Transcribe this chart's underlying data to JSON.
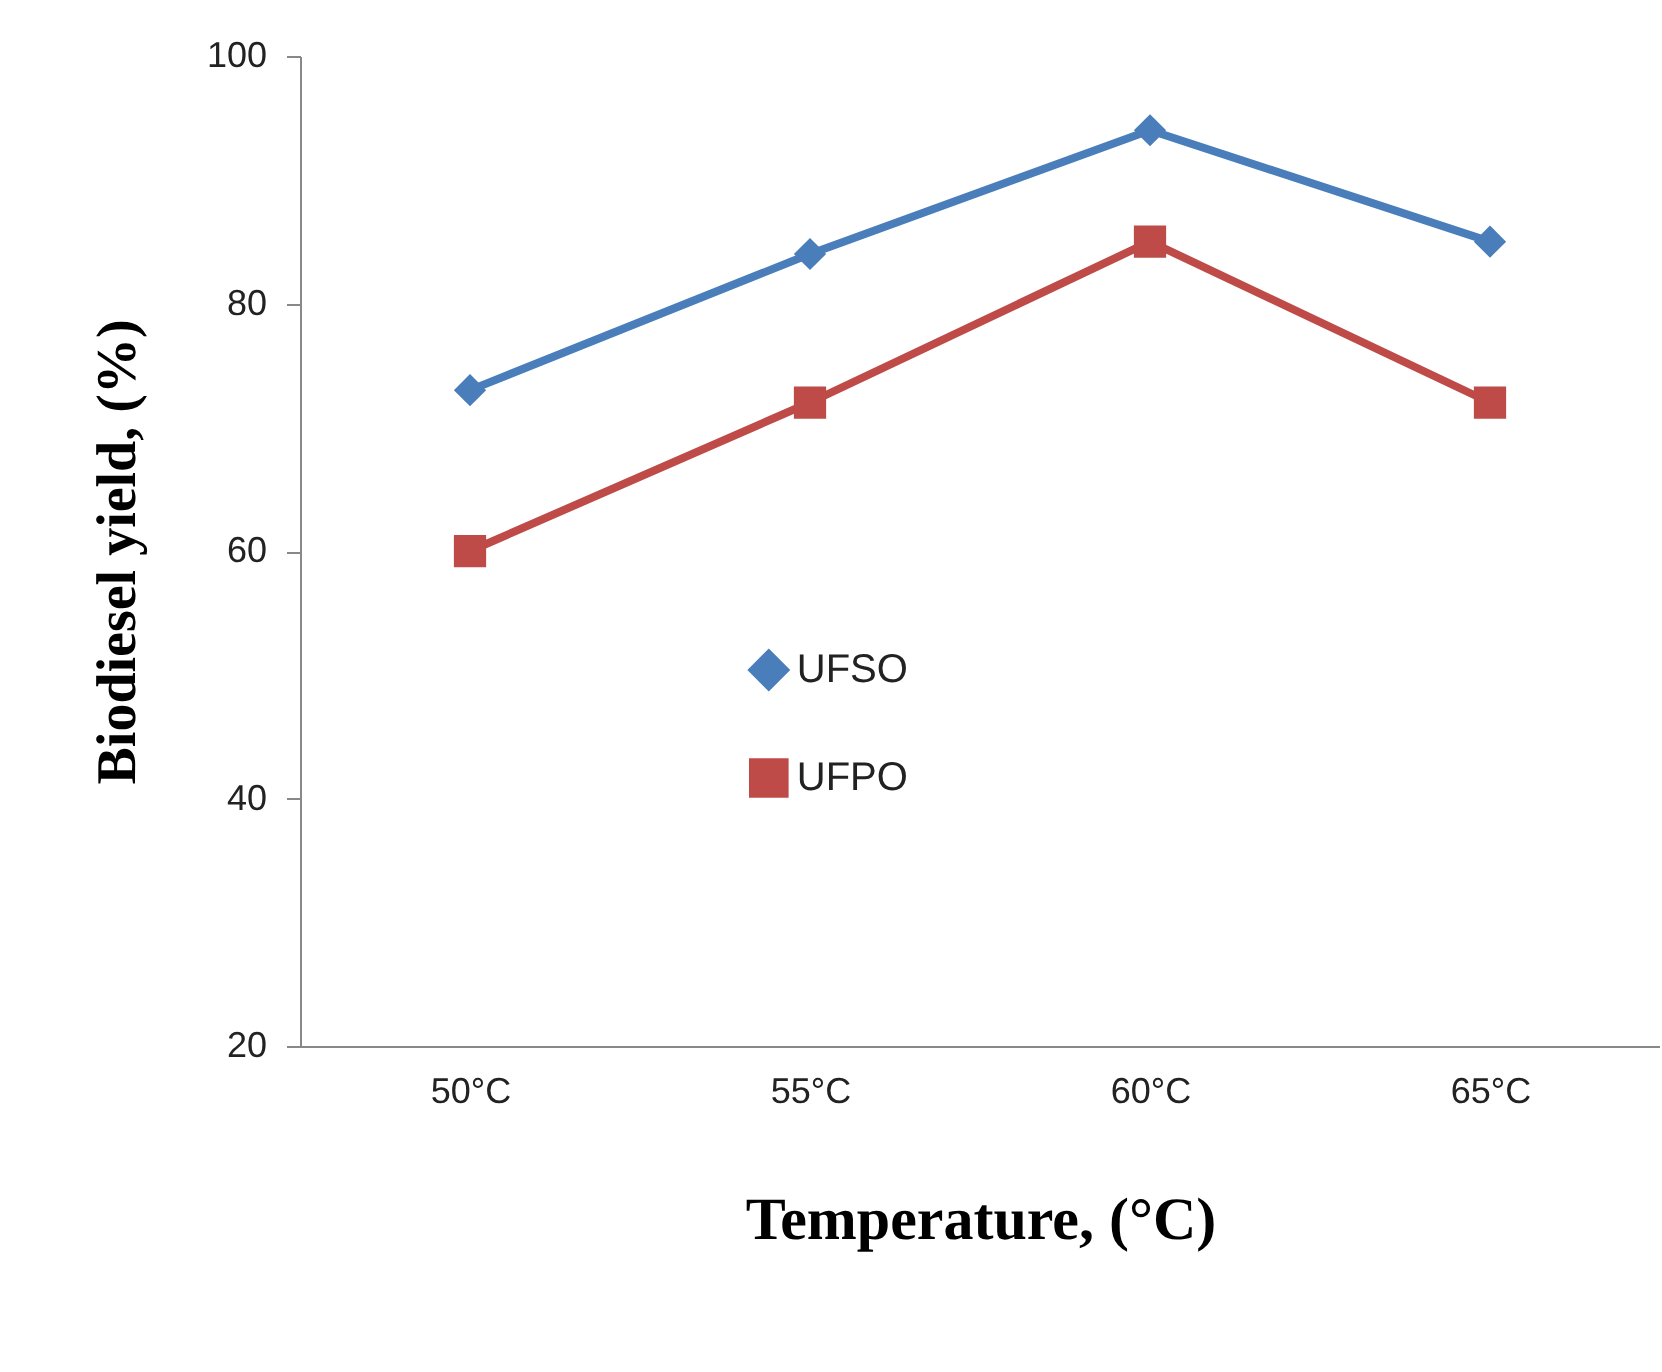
{
  "chart_data": {
    "type": "line",
    "xlabel": "Temperature, (°C)",
    "ylabel": "Biodiesel yield, (%)",
    "categories": [
      "50°C",
      "55°C",
      "60°C",
      "65°C"
    ],
    "series": [
      {
        "name": "UFSO",
        "color": "#4a7ebb",
        "marker": "diamond",
        "values": [
          73,
          84,
          94,
          85
        ]
      },
      {
        "name": "UFPO",
        "color": "#be4b48",
        "marker": "square",
        "values": [
          60,
          72,
          85,
          72
        ]
      }
    ],
    "ylim": [
      20,
      100
    ],
    "yticks": [
      20,
      40,
      60,
      80,
      100
    ],
    "grid": false,
    "legend": "center",
    "line_style": "solid"
  }
}
